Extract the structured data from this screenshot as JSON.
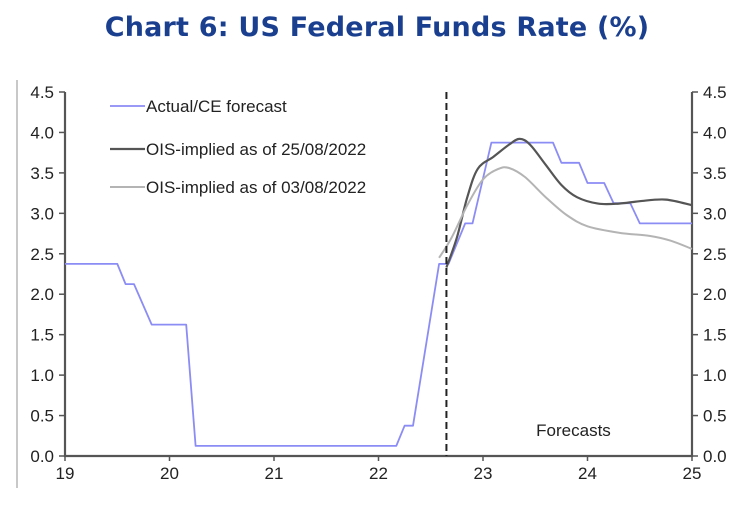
{
  "title": "Chart 6: US Federal Funds Rate (%)",
  "chart_data": {
    "type": "line",
    "title": "Chart 6: US Federal Funds Rate (%)",
    "xlabel": "",
    "ylabel": "",
    "xlim": [
      19,
      25
    ],
    "ylim": [
      0,
      4.5
    ],
    "x_ticks": [
      "19",
      "20",
      "21",
      "22",
      "23",
      "24",
      "25"
    ],
    "y_ticks_left": [
      "0.0",
      "0.5",
      "1.0",
      "1.5",
      "2.0",
      "2.5",
      "3.0",
      "3.5",
      "4.0",
      "4.5"
    ],
    "y_ticks_right": [
      "0.0",
      "0.5",
      "1.0",
      "1.5",
      "2.0",
      "2.5",
      "3.0",
      "3.5",
      "4.0",
      "4.5"
    ],
    "grid": false,
    "legend_position": "top-left",
    "annotations": [
      {
        "text": "Forecasts",
        "x": 24.0,
        "y": 0.15
      },
      {
        "type": "vline",
        "x": 22.65,
        "style": "dashed"
      }
    ],
    "colors": {
      "actual": "#8c8cf5",
      "ois_25": "#555555",
      "ois_03": "#b4b4b4",
      "title": "#1a3f8f"
    },
    "series": [
      {
        "name": "Actual/CE forecast",
        "key": "actual",
        "points": [
          [
            19.0,
            2.375
          ],
          [
            19.5,
            2.375
          ],
          [
            19.58,
            2.125
          ],
          [
            19.66,
            2.125
          ],
          [
            19.83,
            1.625
          ],
          [
            20.16,
            1.625
          ],
          [
            20.25,
            0.125
          ],
          [
            22.17,
            0.125
          ],
          [
            22.25,
            0.375
          ],
          [
            22.33,
            0.375
          ],
          [
            22.58,
            2.375
          ],
          [
            22.67,
            2.375
          ],
          [
            22.83,
            2.875
          ],
          [
            22.9,
            2.875
          ],
          [
            23.08,
            3.875
          ],
          [
            23.67,
            3.875
          ],
          [
            23.75,
            3.625
          ],
          [
            23.92,
            3.625
          ],
          [
            24.0,
            3.375
          ],
          [
            24.16,
            3.375
          ],
          [
            24.25,
            3.125
          ],
          [
            24.41,
            3.125
          ],
          [
            24.5,
            2.875
          ],
          [
            25.0,
            2.875
          ]
        ]
      },
      {
        "name": "OIS-implied as of 25/08/2022",
        "key": "ois_25",
        "points": [
          [
            22.65,
            2.33
          ],
          [
            22.75,
            2.7
          ],
          [
            22.85,
            3.2
          ],
          [
            22.95,
            3.55
          ],
          [
            23.1,
            3.7
          ],
          [
            23.25,
            3.85
          ],
          [
            23.35,
            3.92
          ],
          [
            23.45,
            3.85
          ],
          [
            23.6,
            3.6
          ],
          [
            23.75,
            3.35
          ],
          [
            23.9,
            3.2
          ],
          [
            24.1,
            3.12
          ],
          [
            24.3,
            3.12
          ],
          [
            24.5,
            3.15
          ],
          [
            24.75,
            3.17
          ],
          [
            25.0,
            3.1
          ]
        ]
      },
      {
        "name": "OIS-implied as of 03/08/2022",
        "key": "ois_03",
        "points": [
          [
            22.58,
            2.45
          ],
          [
            22.7,
            2.7
          ],
          [
            22.85,
            3.1
          ],
          [
            23.0,
            3.42
          ],
          [
            23.15,
            3.55
          ],
          [
            23.25,
            3.56
          ],
          [
            23.4,
            3.45
          ],
          [
            23.6,
            3.2
          ],
          [
            23.8,
            2.98
          ],
          [
            24.0,
            2.84
          ],
          [
            24.3,
            2.76
          ],
          [
            24.6,
            2.72
          ],
          [
            24.8,
            2.66
          ],
          [
            25.0,
            2.56
          ]
        ]
      }
    ]
  }
}
